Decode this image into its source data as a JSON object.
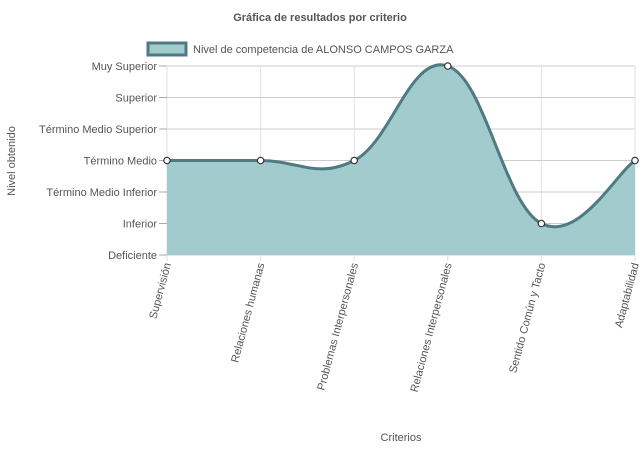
{
  "chart_data": {
    "type": "area",
    "title": "Gráfica de resultados por criterio",
    "xlabel": "Criterios",
    "ylabel": "Nivel obtenido",
    "categories": [
      "Supervisión",
      "Relaciones humanas",
      "Problemas Interpersonales",
      "Relaciones Interpersonales",
      "Sentido Común y Tacto",
      "Adaptabilidad"
    ],
    "y_levels": [
      "Deficiente",
      "Inferior",
      "Término Medio Inferior",
      "Término Medio",
      "Término Medio Superior",
      "Superior",
      "Muy Superior"
    ],
    "ylim": [
      0,
      6
    ],
    "series": [
      {
        "name": "Nivel de competencia de ALONSO CAMPOS GARZA",
        "values": [
          3,
          3,
          3,
          6,
          1,
          3
        ],
        "fill_color": "#a2cbce",
        "line_color": "#4e7a82"
      }
    ],
    "grid": true,
    "legend_position": "top"
  }
}
